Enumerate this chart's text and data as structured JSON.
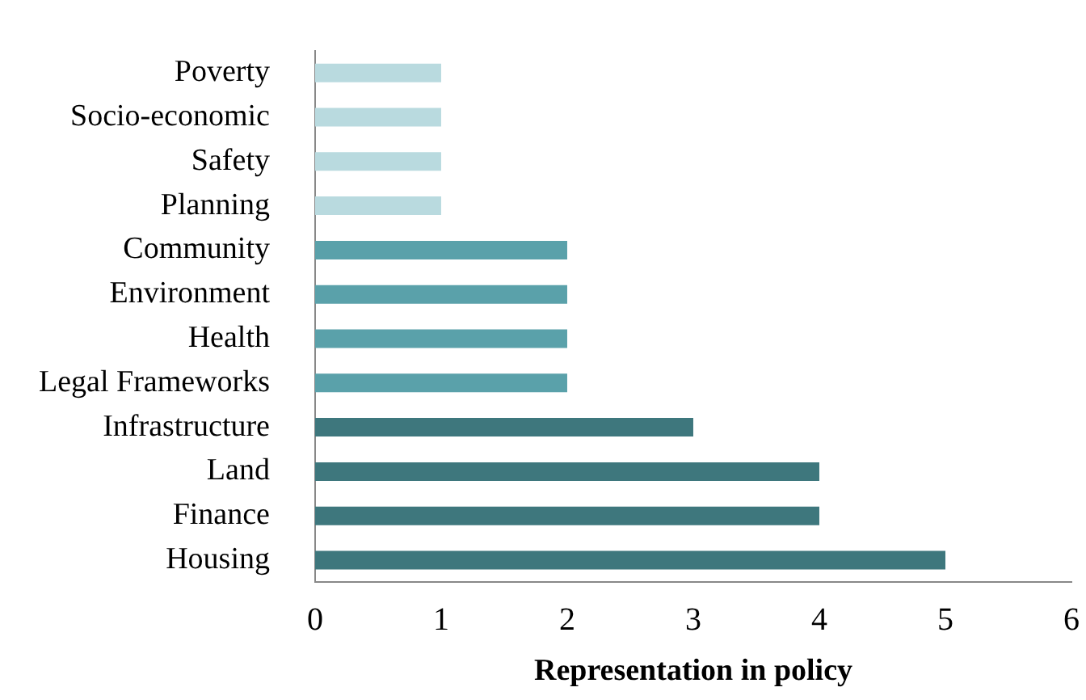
{
  "chart_data": {
    "type": "bar",
    "orientation": "horizontal",
    "xlabel": "Representation in policy",
    "categories": [
      "Poverty",
      "Socio-economic",
      "Safety",
      "Planning",
      "Community",
      "Environment",
      "Health",
      "Legal Frameworks",
      "Infrastructure",
      "Land",
      "Finance",
      "Housing"
    ],
    "values": [
      1,
      1,
      1,
      1,
      2,
      2,
      2,
      2,
      3,
      4,
      4,
      5
    ],
    "colors": [
      "#b9dadf",
      "#b9dadf",
      "#b9dadf",
      "#b9dadf",
      "#5aa1aa",
      "#5aa1aa",
      "#5aa1aa",
      "#5aa1aa",
      "#3e777d",
      "#3e777d",
      "#3e777d",
      "#3e777d"
    ],
    "xlim": [
      0,
      6
    ],
    "xticks": [
      0,
      1,
      2,
      3,
      4,
      5,
      6
    ],
    "grid": false,
    "legend": false
  }
}
